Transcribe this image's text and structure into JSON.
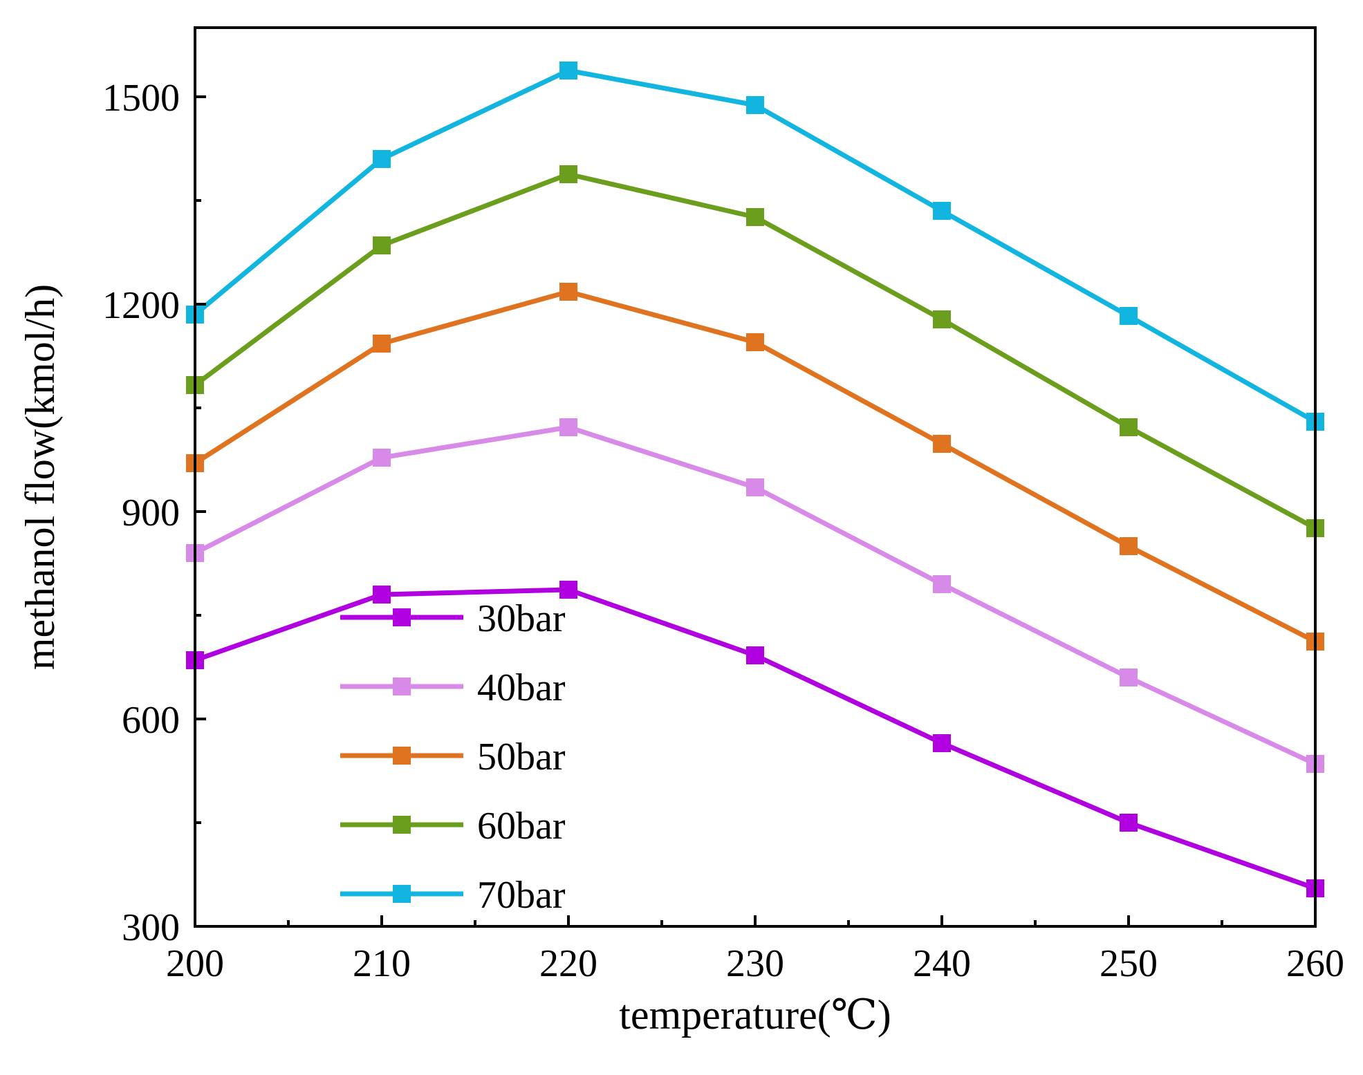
{
  "chart_data": {
    "type": "line",
    "title": "",
    "xlabel": "temperature(℃)",
    "ylabel": "methanol flow(kmol/h)",
    "x": [
      200,
      210,
      220,
      230,
      240,
      250,
      260
    ],
    "xlim": [
      200,
      260
    ],
    "ylim": [
      300,
      1600
    ],
    "xticks": [
      200,
      210,
      220,
      230,
      240,
      250,
      260
    ],
    "yticks": [
      300,
      600,
      900,
      1200,
      1500
    ],
    "grid": false,
    "legend_position": "bottom-left",
    "series": [
      {
        "name": "30bar",
        "color": "#b000e0",
        "values": [
          685,
          780,
          787,
          692,
          565,
          450,
          355
        ]
      },
      {
        "name": "40bar",
        "color": "#d88ae8",
        "values": [
          840,
          978,
          1022,
          935,
          795,
          660,
          535
        ]
      },
      {
        "name": "50bar",
        "color": "#e0731f",
        "values": [
          970,
          1143,
          1218,
          1145,
          998,
          850,
          712
        ]
      },
      {
        "name": "60bar",
        "color": "#6a9e1c",
        "values": [
          1083,
          1285,
          1388,
          1326,
          1178,
          1022,
          876
        ]
      },
      {
        "name": "70bar",
        "color": "#12b5e0",
        "values": [
          1185,
          1410,
          1538,
          1488,
          1335,
          1183,
          1030
        ]
      }
    ]
  }
}
